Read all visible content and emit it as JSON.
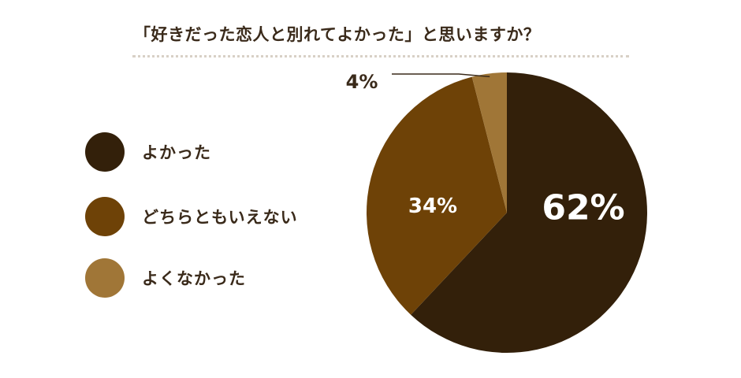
{
  "title": "「好きだった恋人と別れてよかった」と思いますか？",
  "colors": {
    "yokatta": "#33200a",
    "dochira": "#6e4207",
    "yokunakatta": "#a07637",
    "text": "#3a2a1a"
  },
  "chart_data": {
    "type": "pie",
    "title": "「好きだった恋人と別れてよかった」と思いますか？",
    "legend_position": "left",
    "slices": [
      {
        "label": "よかった",
        "value": 62,
        "value_label": "62%",
        "color": "#33200a"
      },
      {
        "label": "どちらともいえない",
        "value": 34,
        "value_label": "34%",
        "color": "#6e4207"
      },
      {
        "label": "よくなかった",
        "value": 4,
        "value_label": "4%",
        "color": "#a07637"
      }
    ]
  }
}
